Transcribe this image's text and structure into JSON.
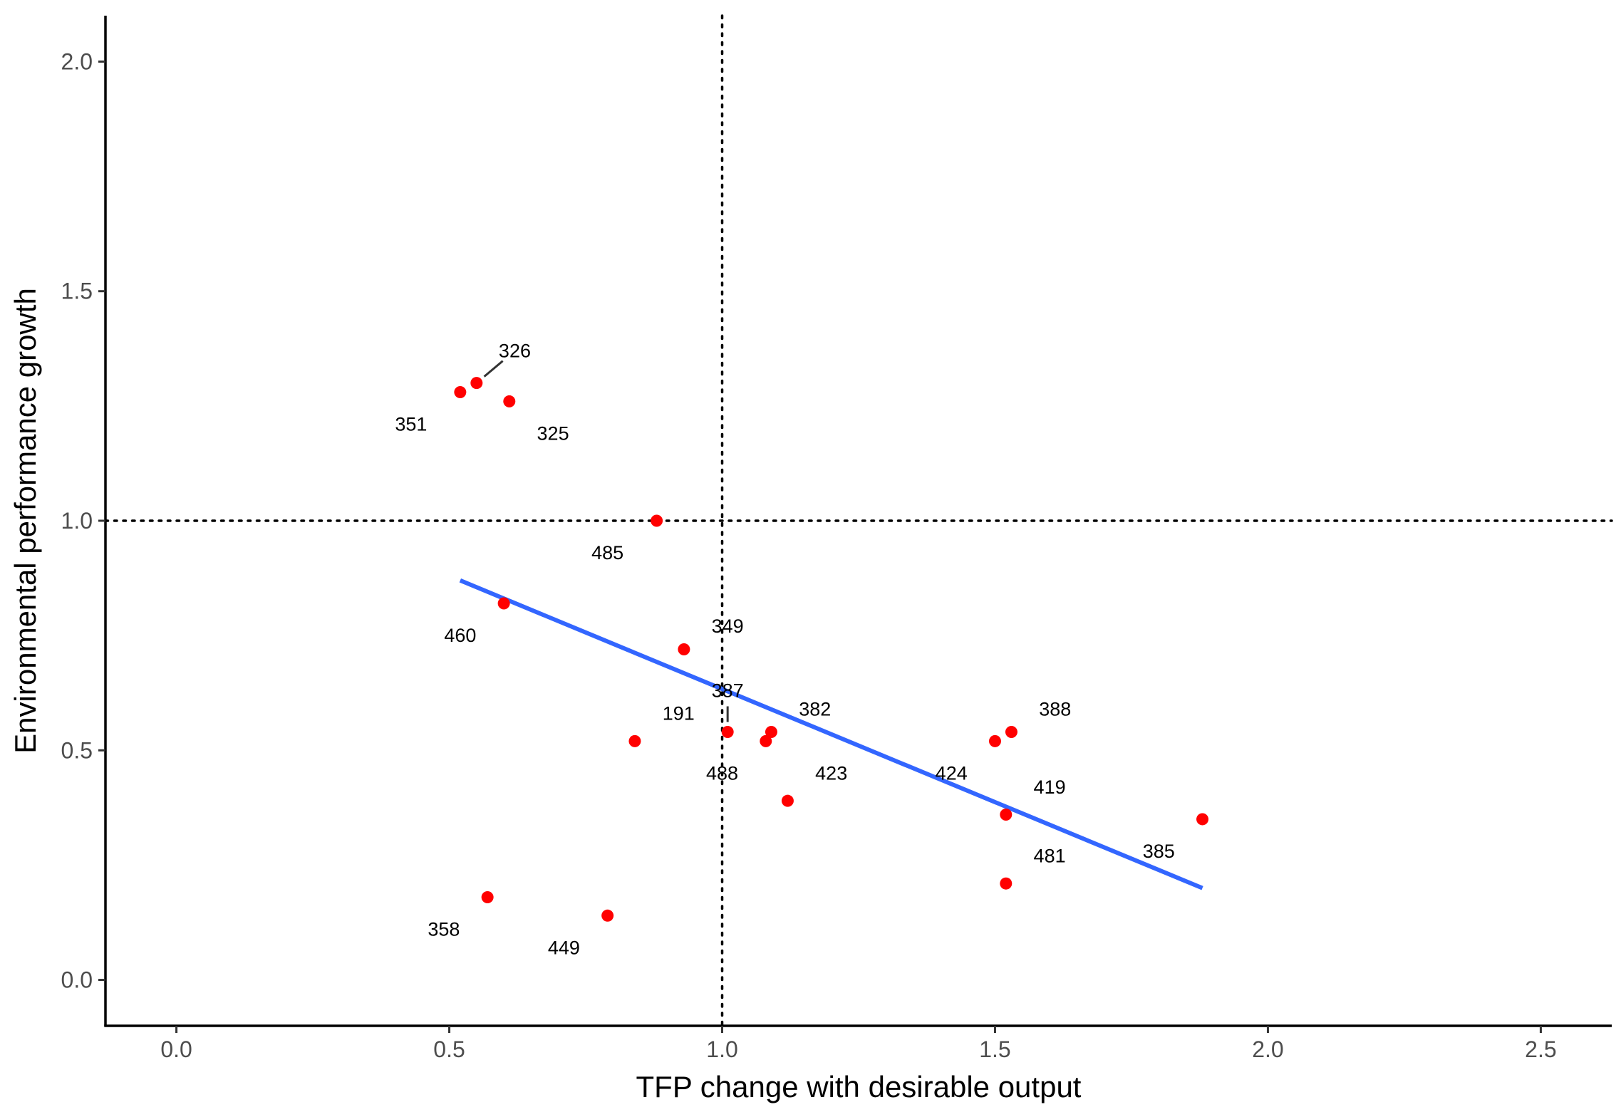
{
  "chart_data": {
    "type": "scatter",
    "title": "",
    "xlabel": "TFP change with desirable output",
    "ylabel": "Environmental performance growth",
    "xlim": [
      -0.13,
      2.63
    ],
    "ylim": [
      -0.1,
      2.1
    ],
    "x_ticks": [
      {
        "value": 0.0,
        "label": "0.0"
      },
      {
        "value": 0.5,
        "label": "0.5"
      },
      {
        "value": 1.0,
        "label": "1.0"
      },
      {
        "value": 1.5,
        "label": "1.5"
      },
      {
        "value": 2.0,
        "label": "2.0"
      },
      {
        "value": 2.5,
        "label": "2.5"
      }
    ],
    "y_ticks": [
      {
        "value": 0.0,
        "label": "0.0"
      },
      {
        "value": 0.5,
        "label": "0.5"
      },
      {
        "value": 1.0,
        "label": "1.0"
      },
      {
        "value": 1.5,
        "label": "1.5"
      },
      {
        "value": 2.0,
        "label": "2.0"
      }
    ],
    "grid": false,
    "legend": "none",
    "reference_lines": {
      "x": 1.0,
      "y": 1.0,
      "style": "dotted"
    },
    "point_color": "#ff0000",
    "trend_color": "#3366ff",
    "points": [
      {
        "label": "326",
        "x": 0.55,
        "y": 1.3,
        "lx": 0.62,
        "ly": 1.37,
        "leader": true
      },
      {
        "label": "351",
        "x": 0.52,
        "y": 1.28,
        "lx": 0.43,
        "ly": 1.21,
        "leader": false
      },
      {
        "label": "325",
        "x": 0.61,
        "y": 1.26,
        "lx": 0.69,
        "ly": 1.19,
        "leader": false
      },
      {
        "label": "485",
        "x": 0.88,
        "y": 1.0,
        "lx": 0.79,
        "ly": 0.93,
        "leader": false
      },
      {
        "label": "460",
        "x": 0.6,
        "y": 0.82,
        "lx": 0.52,
        "ly": 0.75,
        "leader": false
      },
      {
        "label": "349",
        "x": 0.93,
        "y": 0.72,
        "lx": 1.01,
        "ly": 0.77,
        "leader": false
      },
      {
        "label": "387",
        "x": 1.01,
        "y": 0.54,
        "lx": 1.01,
        "ly": 0.63,
        "leader": true
      },
      {
        "label": "191",
        "x": 0.84,
        "y": 0.52,
        "lx": 0.92,
        "ly": 0.58,
        "leader": false
      },
      {
        "label": "382",
        "x": 1.09,
        "y": 0.54,
        "lx": 1.17,
        "ly": 0.59,
        "leader": false
      },
      {
        "label": "488",
        "x": 1.08,
        "y": 0.52,
        "lx": 1.0,
        "ly": 0.45,
        "leader": false
      },
      {
        "label": "423",
        "x": 1.12,
        "y": 0.39,
        "lx": 1.2,
        "ly": 0.45,
        "leader": false
      },
      {
        "label": "424",
        "x": 1.5,
        "y": 0.52,
        "lx": 1.42,
        "ly": 0.45,
        "leader": false
      },
      {
        "label": "388",
        "x": 1.53,
        "y": 0.54,
        "lx": 1.61,
        "ly": 0.59,
        "leader": false
      },
      {
        "label": "419",
        "x": 1.52,
        "y": 0.36,
        "lx": 1.6,
        "ly": 0.42,
        "leader": false
      },
      {
        "label": "385",
        "x": 1.88,
        "y": 0.35,
        "lx": 1.8,
        "ly": 0.28,
        "leader": false
      },
      {
        "label": "481",
        "x": 1.52,
        "y": 0.21,
        "lx": 1.6,
        "ly": 0.27,
        "leader": false
      },
      {
        "label": "358",
        "x": 0.57,
        "y": 0.18,
        "lx": 0.49,
        "ly": 0.11,
        "leader": false
      },
      {
        "label": "449",
        "x": 0.79,
        "y": 0.14,
        "lx": 0.71,
        "ly": 0.07,
        "leader": false
      }
    ],
    "trend_line": {
      "x": [
        0.52,
        1.88
      ],
      "y": [
        0.87,
        0.2
      ]
    }
  }
}
